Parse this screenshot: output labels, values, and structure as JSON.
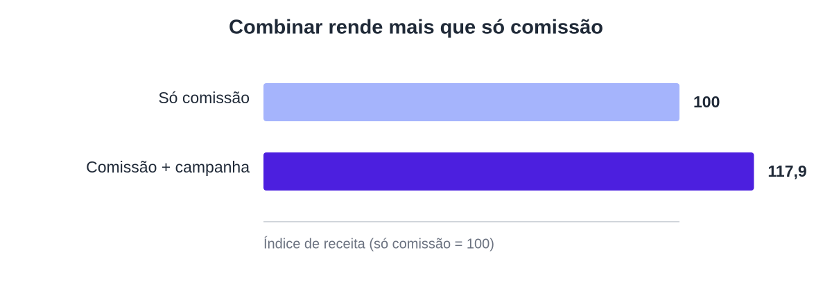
{
  "chart_data": {
    "type": "bar",
    "orientation": "horizontal",
    "title": "Combinar rende mais que só comissão",
    "categories": [
      "Só comissão",
      "Comissão + campanha"
    ],
    "values": [
      100,
      117.9
    ],
    "value_labels": [
      "100",
      "117,9"
    ],
    "colors": [
      "#a5b4fc",
      "#4c1fdf"
    ],
    "xlim": [
      0,
      100
    ],
    "x_label": "Índice de receita (só comissão = 100)"
  }
}
